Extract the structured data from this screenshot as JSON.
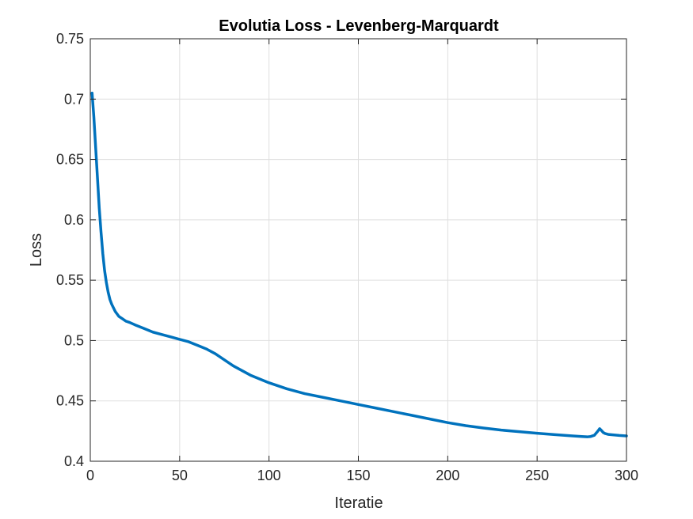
{
  "chart_data": {
    "type": "line",
    "title": "Evolutia Loss - Levenberg-Marquardt",
    "xlabel": "Iteratie",
    "ylabel": "Loss",
    "xlim": [
      0,
      300
    ],
    "ylim": [
      0.4,
      0.75
    ],
    "xticks": [
      0,
      50,
      100,
      150,
      200,
      250,
      300
    ],
    "xtick_labels": [
      "0",
      "50",
      "100",
      "150",
      "200",
      "250",
      "300"
    ],
    "yticks": [
      0.4,
      0.45,
      0.5,
      0.55,
      0.6,
      0.65,
      0.7,
      0.75
    ],
    "ytick_labels": [
      "0.4",
      "0.45",
      "0.5",
      "0.55",
      "0.6",
      "0.65",
      "0.7",
      "0.75"
    ],
    "grid": true,
    "series": [
      {
        "color": "#0072BD",
        "x": [
          1,
          2,
          3,
          4,
          5,
          6,
          7,
          8,
          9,
          10,
          11,
          12,
          13,
          14,
          15,
          16,
          18,
          20,
          22,
          25,
          30,
          35,
          40,
          45,
          50,
          55,
          60,
          65,
          70,
          75,
          80,
          85,
          90,
          95,
          100,
          110,
          120,
          130,
          140,
          150,
          160,
          170,
          180,
          190,
          200,
          210,
          220,
          230,
          240,
          250,
          260,
          270,
          275,
          278,
          280,
          282,
          284,
          285,
          286,
          287,
          288,
          290,
          293,
          296,
          300
        ],
        "y": [
          0.705,
          0.685,
          0.66,
          0.635,
          0.61,
          0.59,
          0.572,
          0.558,
          0.548,
          0.54,
          0.534,
          0.53,
          0.527,
          0.524,
          0.522,
          0.52,
          0.518,
          0.516,
          0.515,
          0.513,
          0.51,
          0.507,
          0.505,
          0.503,
          0.501,
          0.499,
          0.496,
          0.493,
          0.489,
          0.484,
          0.479,
          0.475,
          0.471,
          0.468,
          0.465,
          0.46,
          0.456,
          0.453,
          0.45,
          0.447,
          0.444,
          0.441,
          0.438,
          0.435,
          0.432,
          0.4295,
          0.4275,
          0.4258,
          0.4245,
          0.4232,
          0.422,
          0.421,
          0.4205,
          0.4202,
          0.4205,
          0.4215,
          0.425,
          0.427,
          0.4255,
          0.4238,
          0.423,
          0.4222,
          0.4218,
          0.4214,
          0.421
        ]
      }
    ]
  }
}
